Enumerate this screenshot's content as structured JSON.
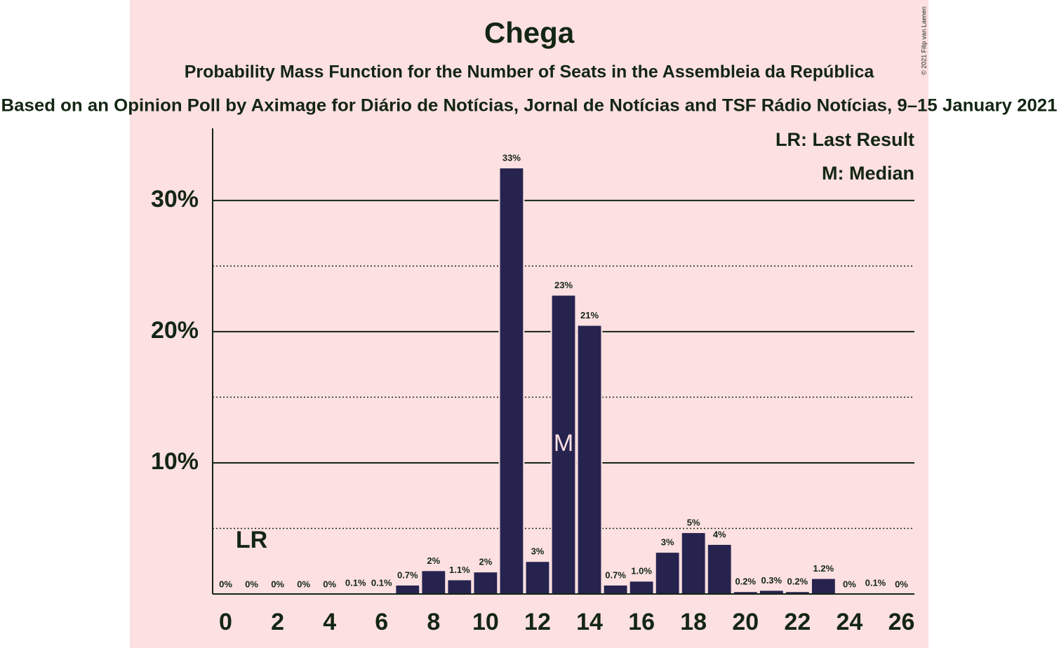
{
  "chart_data": {
    "type": "bar",
    "title": "Chega",
    "subtitle": "Probability Mass Function for the Number of Seats in the Assembleia da República",
    "source": "Based on an Opinion Poll by Aximage for Diário de Notícias, Jornal de Notícias and TSF Rádio Notícias, 9–15 January 2021",
    "copyright": "© 2021 Filip van Laenen",
    "x": [
      0,
      1,
      2,
      3,
      4,
      5,
      6,
      7,
      8,
      9,
      10,
      11,
      12,
      13,
      14,
      15,
      16,
      17,
      18,
      19,
      20,
      21,
      22,
      23,
      24,
      25,
      26
    ],
    "series": [
      {
        "color": "#26234f",
        "values": [
          0,
          0,
          0,
          0,
          0,
          0.1,
          0.1,
          0.7,
          1.8,
          1.1,
          1.7,
          32.5,
          2.5,
          22.8,
          20.5,
          0.7,
          1.0,
          3.2,
          4.7,
          3.8,
          0.2,
          0.3,
          0.2,
          1.2,
          0,
          0.1,
          0
        ],
        "value_labels": [
          "0%",
          "0%",
          "0%",
          "0%",
          "0%",
          "0.1%",
          "0.1%",
          "0.7%",
          "2%",
          "1.1%",
          "2%",
          "33%",
          "3%",
          "23%",
          "21%",
          "0.7%",
          "1.0%",
          "3%",
          "5%",
          "4%",
          "0.2%",
          "0.3%",
          "0.2%",
          "1.2%",
          "0%",
          "0.1%",
          "0%"
        ]
      }
    ],
    "xlim": [
      -0.5,
      26.5
    ],
    "xticks": [
      0,
      2,
      4,
      6,
      8,
      10,
      12,
      14,
      16,
      18,
      20,
      22,
      24,
      26
    ],
    "ylim": [
      0,
      35.5
    ],
    "yticks": [
      {
        "value": 10,
        "label": "10%"
      },
      {
        "value": 20,
        "label": "20%"
      },
      {
        "value": 30,
        "label": "30%"
      }
    ],
    "minor_yticks": [
      5,
      15,
      25
    ],
    "grid": true,
    "markers": [
      {
        "label": "LR",
        "x": 1
      },
      {
        "label": "M",
        "x": 13
      }
    ],
    "legend": [
      "LR: Last Result",
      "M: Median"
    ],
    "legend_position": "upper right"
  }
}
